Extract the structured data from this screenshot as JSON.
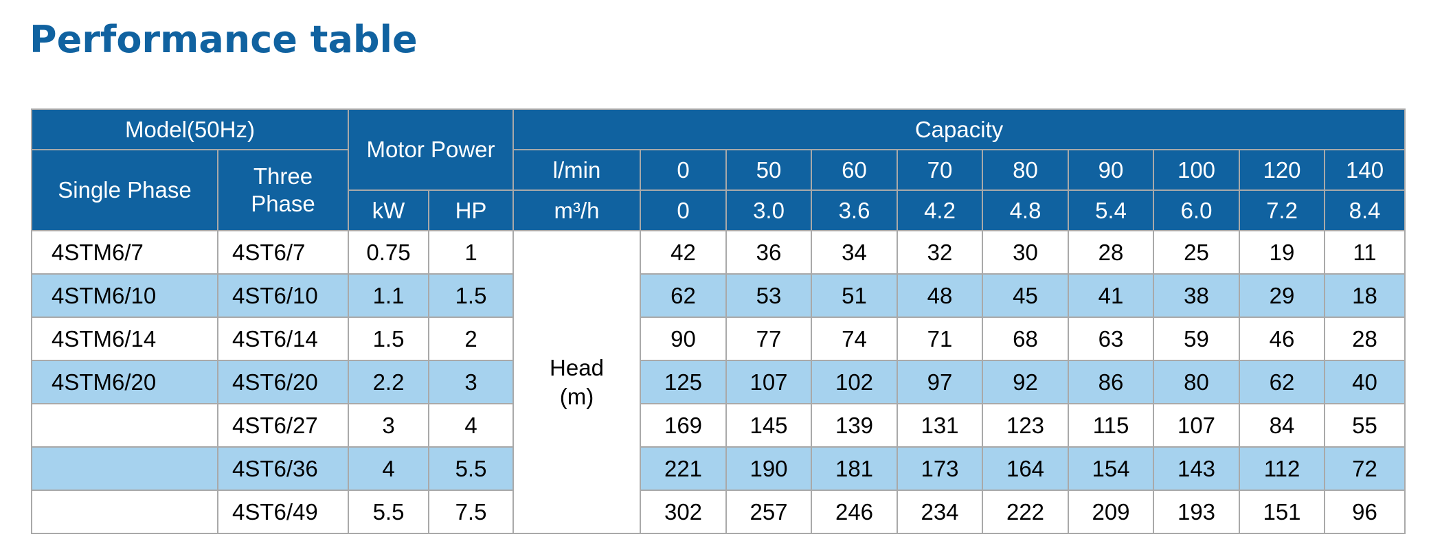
{
  "title": "Performance table",
  "header": {
    "model": "Model(50Hz)",
    "single_phase": "Single Phase",
    "three_phase": "Three Phase",
    "motor_power": "Motor Power",
    "kw": "kW",
    "hp": "HP",
    "capacity": "Capacity",
    "lmin_label": "l/min",
    "m3h_label": "m³/h",
    "lmin": [
      "0",
      "50",
      "60",
      "70",
      "80",
      "90",
      "100",
      "120",
      "140"
    ],
    "m3h": [
      "0",
      "3.0",
      "3.6",
      "4.2",
      "4.8",
      "5.4",
      "6.0",
      "7.2",
      "8.4"
    ]
  },
  "head_label": "Head\n(m)",
  "rows": [
    {
      "single": "4STM6/7",
      "three": "4ST6/7",
      "kw": "0.75",
      "hp": "1",
      "head": [
        "42",
        "36",
        "34",
        "32",
        "30",
        "28",
        "25",
        "19",
        "11"
      ]
    },
    {
      "single": "4STM6/10",
      "three": "4ST6/10",
      "kw": "1.1",
      "hp": "1.5",
      "head": [
        "62",
        "53",
        "51",
        "48",
        "45",
        "41",
        "38",
        "29",
        "18"
      ]
    },
    {
      "single": "4STM6/14",
      "three": "4ST6/14",
      "kw": "1.5",
      "hp": "2",
      "head": [
        "90",
        "77",
        "74",
        "71",
        "68",
        "63",
        "59",
        "46",
        "28"
      ]
    },
    {
      "single": "4STM6/20",
      "three": "4ST6/20",
      "kw": "2.2",
      "hp": "3",
      "head": [
        "125",
        "107",
        "102",
        "97",
        "92",
        "86",
        "80",
        "62",
        "40"
      ]
    },
    {
      "single": "",
      "three": "4ST6/27",
      "kw": "3",
      "hp": "4",
      "head": [
        "169",
        "145",
        "139",
        "131",
        "123",
        "115",
        "107",
        "84",
        "55"
      ]
    },
    {
      "single": "",
      "three": "4ST6/36",
      "kw": "4",
      "hp": "5.5",
      "head": [
        "221",
        "190",
        "181",
        "173",
        "164",
        "154",
        "143",
        "112",
        "72"
      ]
    },
    {
      "single": "",
      "three": "4ST6/49",
      "kw": "5.5",
      "hp": "7.5",
      "head": [
        "302",
        "257",
        "246",
        "234",
        "222",
        "209",
        "193",
        "151",
        "96"
      ]
    }
  ],
  "colors": {
    "header_blue": "#1062a0",
    "row_alt": "#a6d2ee",
    "border": "#a9a9a9"
  }
}
